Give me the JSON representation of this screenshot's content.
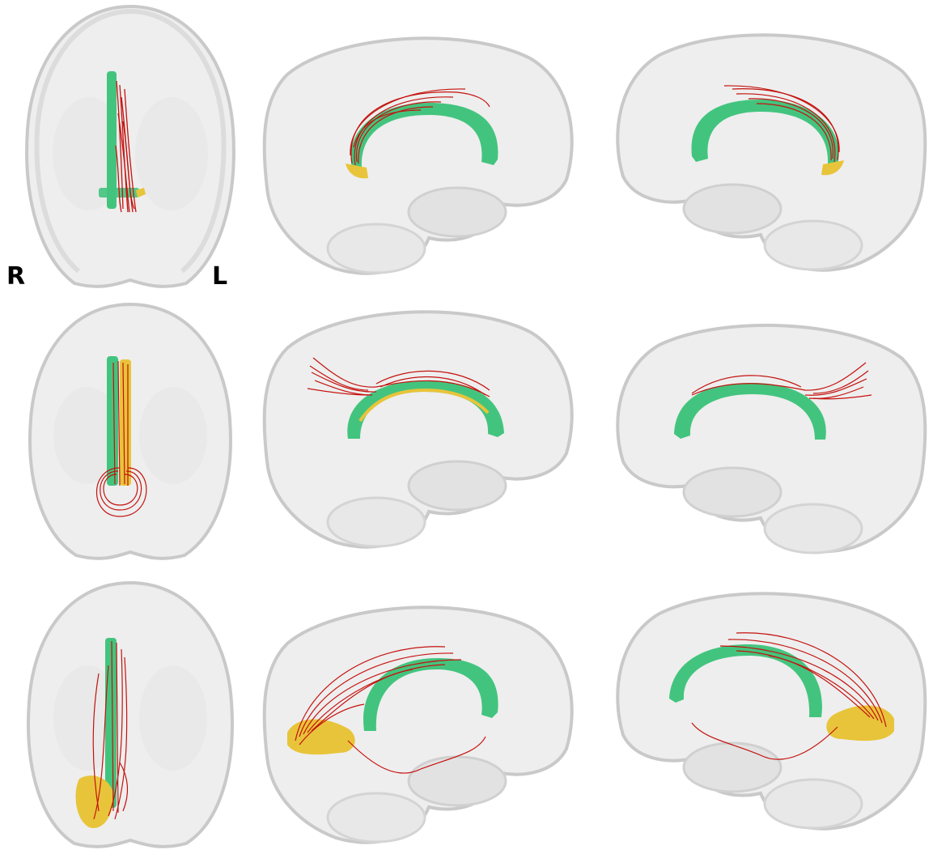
{
  "figure": {
    "orientation_labels": {
      "right": "R",
      "left": "L"
    },
    "rows": [
      {
        "row": 1,
        "views": [
          "axial",
          "sagittal-right",
          "sagittal-left"
        ]
      },
      {
        "row": 2,
        "views": [
          "axial",
          "sagittal-right",
          "sagittal-left"
        ]
      },
      {
        "row": 3,
        "views": [
          "axial",
          "sagittal-right",
          "sagittal-left"
        ]
      }
    ]
  },
  "colors": {
    "brain_shell": "#ececec",
    "brain_outline": "#c8c8c8",
    "corpus_callosum": "#43c47e",
    "fibers": "#c4120e",
    "region": "#e8c43a"
  }
}
